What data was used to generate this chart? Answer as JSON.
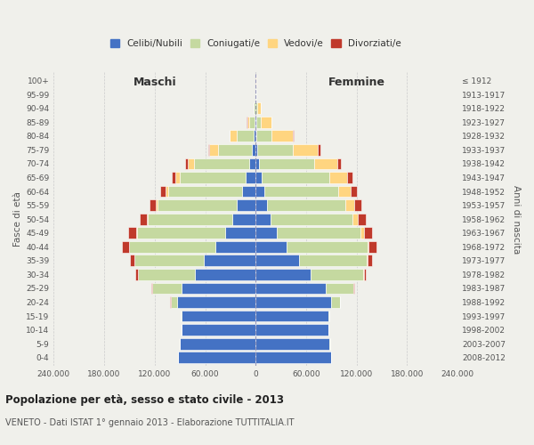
{
  "age_groups": [
    "0-4",
    "5-9",
    "10-14",
    "15-19",
    "20-24",
    "25-29",
    "30-34",
    "35-39",
    "40-44",
    "45-49",
    "50-54",
    "55-59",
    "60-64",
    "65-69",
    "70-74",
    "75-79",
    "80-84",
    "85-89",
    "90-94",
    "95-99",
    "100+"
  ],
  "birth_years": [
    "2008-2012",
    "2003-2007",
    "1998-2002",
    "1993-1997",
    "1988-1992",
    "1983-1987",
    "1978-1982",
    "1973-1977",
    "1968-1972",
    "1963-1967",
    "1958-1962",
    "1953-1957",
    "1948-1952",
    "1943-1947",
    "1938-1942",
    "1933-1937",
    "1928-1932",
    "1923-1927",
    "1918-1922",
    "1913-1917",
    "≤ 1912"
  ],
  "males": {
    "celibi": [
      92000,
      90000,
      88000,
      88000,
      93000,
      88000,
      72000,
      62000,
      48000,
      36000,
      28000,
      22000,
      16000,
      12000,
      8000,
      5000,
      2500,
      1200,
      500,
      200,
      80
    ],
    "coniugati": [
      50,
      100,
      200,
      1000,
      8000,
      35000,
      68000,
      82000,
      102000,
      105000,
      100000,
      95000,
      88000,
      78000,
      65000,
      40000,
      20000,
      6000,
      1500,
      300,
      80
    ],
    "vedovi": [
      1,
      2,
      5,
      10,
      30,
      50,
      100,
      200,
      500,
      1000,
      1500,
      2000,
      3000,
      5000,
      8000,
      10000,
      8000,
      3000,
      800,
      150,
      50
    ],
    "divorziati": [
      2,
      5,
      15,
      80,
      300,
      1000,
      2500,
      5000,
      8000,
      9000,
      8000,
      7000,
      6000,
      4500,
      3000,
      1500,
      800,
      300,
      100,
      20,
      5
    ]
  },
  "females": {
    "nubili": [
      90000,
      88000,
      86000,
      86000,
      90000,
      83000,
      65000,
      52000,
      37000,
      25000,
      18000,
      14000,
      10000,
      7000,
      4000,
      2000,
      1000,
      500,
      200,
      80,
      30
    ],
    "coniugate": [
      40,
      80,
      200,
      1500,
      10000,
      33000,
      63000,
      80000,
      96000,
      100000,
      97000,
      93000,
      88000,
      80000,
      65000,
      42000,
      18000,
      6000,
      2000,
      400,
      120
    ],
    "vedove": [
      1,
      2,
      5,
      15,
      50,
      100,
      250,
      600,
      1500,
      3500,
      6000,
      10000,
      15000,
      22000,
      28000,
      30000,
      25000,
      12000,
      4000,
      800,
      200
    ],
    "divorziate": [
      1,
      3,
      10,
      60,
      280,
      1000,
      2800,
      6000,
      9000,
      10000,
      9500,
      8500,
      7500,
      6000,
      4500,
      2500,
      1200,
      500,
      200,
      40,
      10
    ]
  },
  "colors": {
    "celibi_nubili": "#4472C4",
    "coniugati": "#C5D9A0",
    "vedovi": "#FFD580",
    "divorziati": "#C0392B"
  },
  "xlim": 240000,
  "title": "Popolazione per età, sesso e stato civile - 2013",
  "subtitle": "VENETO - Dati ISTAT 1° gennaio 2013 - Elaborazione TUTTITALIA.IT",
  "ylabel_left": "Fasce di età",
  "ylabel_right": "Anni di nascita",
  "xlabel_left": "Maschi",
  "xlabel_right": "Femmine",
  "legend_labels": [
    "Celibi/Nubili",
    "Coniugati/e",
    "Vedovi/e",
    "Divorziati/e"
  ],
  "background_color": "#f0f0eb",
  "bar_edge_color": "#ffffff",
  "grid_color": "#cccccc",
  "text_color": "#555555",
  "title_color": "#222222"
}
